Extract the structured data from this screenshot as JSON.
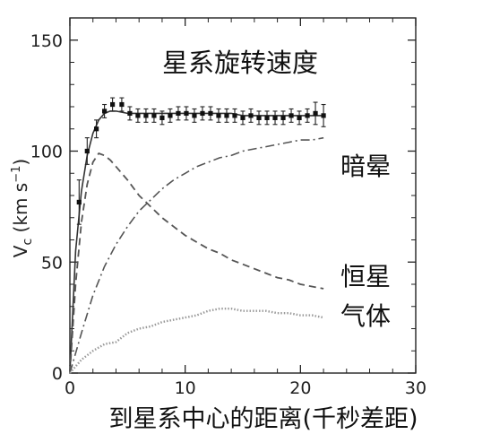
{
  "chart_data": {
    "type": "line",
    "title": "星系旋转速度",
    "xlabel": "到星系中心的距离(千秒差距)",
    "ylabel": "Vc (km s⁻¹)",
    "ylabel_parts": {
      "v": "V",
      "sub": "c",
      "unit": " (km s",
      "sup": "−1",
      "close": ")"
    },
    "xlim": [
      0,
      30
    ],
    "ylim": [
      0,
      160
    ],
    "x_ticks": [
      0,
      10,
      20,
      30
    ],
    "y_ticks": [
      0,
      50,
      100,
      150
    ],
    "x_tick_labels": [
      "0",
      "10",
      "20",
      "30"
    ],
    "y_tick_labels": [
      "0",
      "50",
      "100",
      "150"
    ],
    "labels": {
      "halo": "暗晕",
      "stars": "恒星",
      "gas": "气体"
    },
    "observed_points": {
      "x": [
        0.8,
        1.5,
        2.3,
        3.0,
        3.7,
        4.5,
        5.2,
        5.9,
        6.6,
        7.3,
        8.0,
        8.7,
        9.4,
        10.1,
        10.8,
        11.5,
        12.2,
        12.9,
        13.6,
        14.3,
        15.0,
        15.7,
        16.4,
        17.1,
        17.8,
        18.5,
        19.2,
        19.9,
        20.6,
        21.3,
        22.0
      ],
      "y": [
        77,
        100,
        110,
        118,
        121,
        121,
        117,
        116,
        116,
        116,
        115,
        116,
        117,
        117,
        116,
        117,
        117,
        116,
        116,
        116,
        115,
        116,
        115,
        115,
        115,
        115,
        116,
        115,
        116,
        117,
        116
      ],
      "err": [
        10,
        6,
        4,
        3,
        3,
        3,
        3,
        3,
        3,
        3,
        3,
        3,
        3,
        3,
        3,
        3,
        3,
        3,
        3,
        3,
        3,
        3,
        3,
        3,
        3,
        3,
        3,
        3,
        3,
        5,
        5
      ]
    },
    "series": [
      {
        "role": "total",
        "style": "solid",
        "x": [
          0,
          0.5,
          1.0,
          1.5,
          2.0,
          2.5,
          3.0,
          3.5,
          4.0,
          5,
          6,
          7,
          8,
          9,
          10,
          11,
          12,
          13,
          14,
          15,
          16,
          17,
          18,
          19,
          20,
          21,
          22
        ],
        "y": [
          0,
          55,
          82,
          98,
          108,
          114,
          117,
          118,
          118,
          117,
          117,
          117,
          117,
          117,
          117,
          117,
          117,
          117,
          117,
          116,
          116,
          116,
          116,
          116,
          116,
          116,
          116
        ]
      },
      {
        "role": "stars",
        "style": "dashed",
        "x": [
          0,
          0.5,
          1.0,
          1.5,
          2.0,
          2.5,
          3.0,
          3.5,
          4,
          5,
          6,
          7,
          8,
          9,
          10,
          11,
          12,
          13,
          14,
          15,
          16,
          17,
          18,
          19,
          20,
          21,
          22
        ],
        "y": [
          0,
          40,
          68,
          85,
          95,
          99,
          98,
          96,
          93,
          87,
          80,
          75,
          70,
          66,
          62,
          59,
          56,
          54,
          51,
          49,
          47,
          45,
          43,
          42,
          40,
          39,
          38
        ]
      },
      {
        "role": "halo",
        "style": "dashdot",
        "x": [
          0,
          1,
          2,
          3,
          4,
          5,
          6,
          7,
          8,
          9,
          10,
          11,
          12,
          13,
          14,
          15,
          16,
          17,
          18,
          19,
          20,
          21,
          22
        ],
        "y": [
          0,
          18,
          35,
          48,
          58,
          66,
          73,
          78,
          83,
          87,
          90,
          93,
          95,
          97,
          98,
          100,
          101,
          102,
          103,
          104,
          105,
          105,
          106
        ]
      },
      {
        "role": "gas",
        "style": "dotted",
        "x": [
          0,
          1,
          2,
          3,
          4,
          5,
          6,
          7,
          8,
          9,
          10,
          11,
          12,
          13,
          14,
          15,
          16,
          17,
          18,
          19,
          20,
          21,
          22
        ],
        "y": [
          0,
          6,
          10,
          13,
          14,
          18,
          20,
          21,
          23,
          24,
          25,
          26,
          28,
          29,
          29,
          28,
          28,
          28,
          27,
          27,
          26,
          26,
          25
        ]
      }
    ],
    "grid": false,
    "colors": {
      "axes": "#222222",
      "curves": "#555555",
      "points": "#111111"
    }
  }
}
